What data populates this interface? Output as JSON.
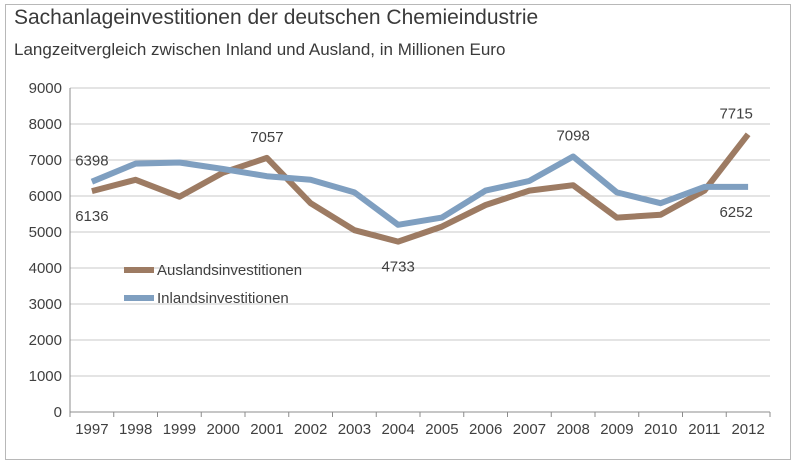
{
  "chart_data": {
    "type": "line",
    "title": "Sachanlageinvestitionen der deutschen Chemieindustrie",
    "subtitle": "Langzeitvergleich zwischen Inland und Ausland, in Millionen Euro",
    "xlabel": "",
    "ylabel": "",
    "ylim": [
      0,
      9000
    ],
    "yticks": [
      0,
      1000,
      2000,
      3000,
      4000,
      5000,
      6000,
      7000,
      8000,
      9000
    ],
    "grid": true,
    "legend_position": "left-center",
    "categories": [
      "1997",
      "1998",
      "1999",
      "2000",
      "2001",
      "2002",
      "2003",
      "2004",
      "2005",
      "2006",
      "2007",
      "2008",
      "2009",
      "2010",
      "2011",
      "2012"
    ],
    "series": [
      {
        "name": "Auslandsinvestitionen",
        "color": "#9d7b63",
        "values": [
          6136,
          6450,
          5980,
          6650,
          7057,
          5800,
          5050,
          4733,
          5150,
          5750,
          6150,
          6300,
          5400,
          5480,
          6150,
          7715
        ]
      },
      {
        "name": "Inlandsinvestitionen",
        "color": "#7f9fc0",
        "values": [
          6398,
          6900,
          6930,
          6750,
          6550,
          6450,
          6100,
          5200,
          5400,
          6150,
          6420,
          7098,
          6100,
          5800,
          6252,
          6252
        ]
      }
    ],
    "data_labels": [
      {
        "series": 0,
        "index": 0,
        "text": "6136",
        "pos": "below"
      },
      {
        "series": 1,
        "index": 0,
        "text": "6398",
        "pos": "above"
      },
      {
        "series": 0,
        "index": 4,
        "text": "7057",
        "pos": "above"
      },
      {
        "series": 0,
        "index": 7,
        "text": "4733",
        "pos": "below"
      },
      {
        "series": 1,
        "index": 11,
        "text": "7098",
        "pos": "above"
      },
      {
        "series": 0,
        "index": 15,
        "text": "7715",
        "pos": "above"
      },
      {
        "series": 1,
        "index": 15,
        "text": "6252",
        "pos": "below"
      }
    ]
  }
}
